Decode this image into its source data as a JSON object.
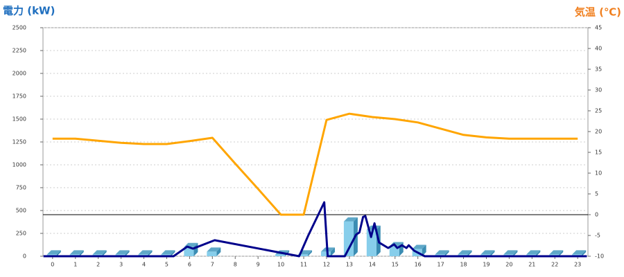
{
  "chart_data": {
    "type": "combo",
    "y_title": "電力 (kW)",
    "y2_title": "気温 (℃)",
    "xlim": [
      -0.42,
      23.45
    ],
    "xticks": [
      0,
      1,
      2,
      3,
      4,
      5,
      6,
      7,
      8,
      9,
      10,
      11,
      12,
      13,
      14,
      15,
      16,
      17,
      18,
      19,
      20,
      21,
      22,
      23
    ],
    "ylim": [
      0,
      2500
    ],
    "yticks": [
      0,
      250,
      500,
      750,
      1000,
      1250,
      1500,
      1750,
      2000,
      2250,
      2500
    ],
    "y2lim": [
      -10,
      45
    ],
    "y2ticks": [
      -10,
      -5,
      0,
      5,
      10,
      15,
      20,
      25,
      30,
      35,
      40,
      45
    ],
    "grid": true,
    "series": [
      {
        "type": "bar",
        "color": "#87ceeb",
        "x": [
          0,
          1,
          2,
          3,
          4,
          5,
          6,
          7,
          8,
          9,
          10,
          11,
          12,
          13,
          14,
          15,
          16,
          17,
          18,
          19,
          20,
          21,
          22,
          23
        ],
        "values": [
          20,
          20,
          20,
          20,
          20,
          20,
          100,
          50,
          0,
          0,
          20,
          20,
          50,
          380,
          290,
          110,
          80,
          20,
          20,
          20,
          20,
          20,
          20,
          20
        ]
      },
      {
        "type": "line",
        "color": "#00008b",
        "x": [
          -0.4,
          5.3,
          5.9,
          6.15,
          7.1,
          10.8,
          11.2,
          11.9,
          12.05,
          12.8,
          13.3,
          13.44,
          13.6,
          13.7,
          13.95,
          14.1,
          14.3,
          14.7,
          14.96,
          15.1,
          15.3,
          15.5,
          15.6,
          15.84,
          16.3,
          23.4
        ],
        "values": [
          0,
          0,
          105,
          83,
          175,
          0,
          227,
          590,
          0,
          0,
          238,
          260,
          430,
          440,
          210,
          360,
          150,
          90,
          130,
          90,
          120,
          90,
          120,
          60,
          0,
          0
        ]
      },
      {
        "type": "line",
        "axis": "y2",
        "color": "#ffa500",
        "x": [
          0,
          1,
          2,
          3,
          4,
          5,
          6,
          7,
          8,
          9,
          10,
          11,
          12,
          13,
          14,
          15,
          16,
          17,
          18,
          19,
          20,
          21,
          22,
          23
        ],
        "values": [
          18.3,
          18.3,
          17.8,
          17.3,
          17,
          17,
          17.7,
          18.5,
          12.3,
          6.2,
          0,
          0,
          22.8,
          24.3,
          23.5,
          23,
          22.2,
          20.7,
          19.2,
          18.6,
          18.3,
          18.3,
          18.3,
          18.3
        ]
      }
    ]
  }
}
